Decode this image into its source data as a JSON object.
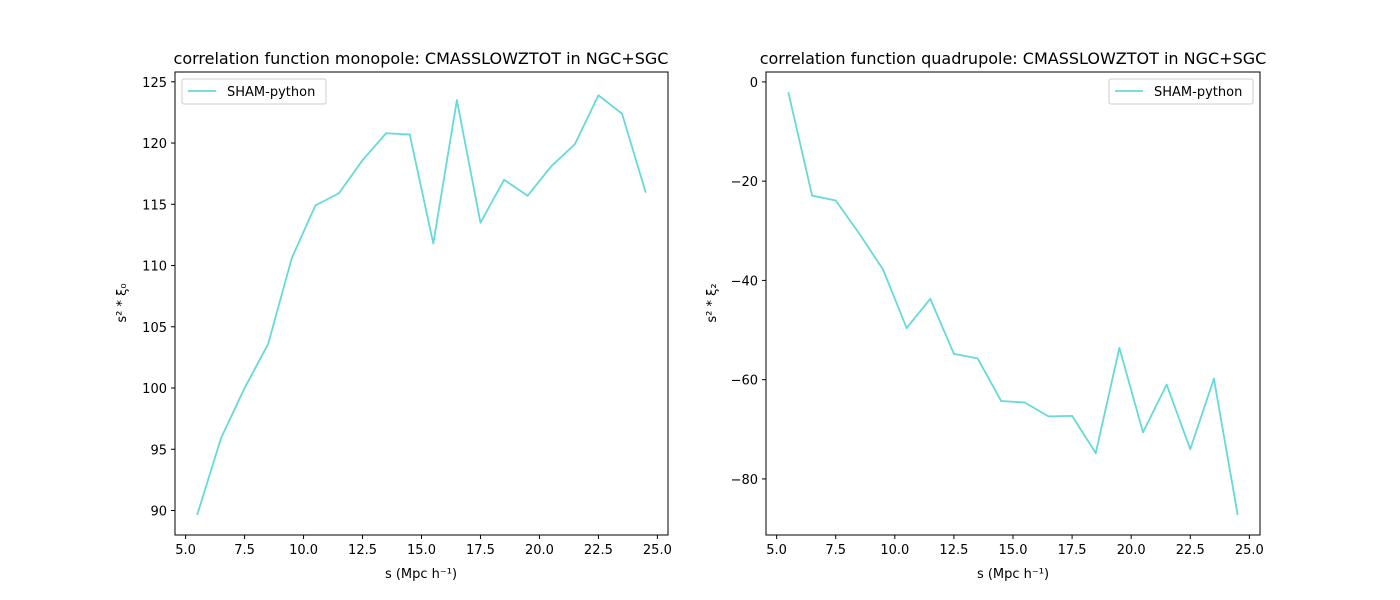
{
  "chart_data": [
    {
      "type": "line",
      "title": "correlation function monopole: CMASSLOWZTOT in NGC+SGC",
      "xlabel": "s (Mpc h⁻¹)",
      "ylabel": "s² * ξ₀",
      "xlim": [
        4.55,
        25.45
      ],
      "ylim": [
        88.0,
        125.8
      ],
      "xticks": [
        5.0,
        7.5,
        10.0,
        12.5,
        15.0,
        17.5,
        20.0,
        22.5,
        25.0
      ],
      "xtick_labels": [
        "5.0",
        "7.5",
        "10.0",
        "12.5",
        "15.0",
        "17.5",
        "20.0",
        "22.5",
        "25.0"
      ],
      "yticks": [
        90,
        95,
        100,
        105,
        110,
        115,
        120,
        125
      ],
      "ytick_labels": [
        "90",
        "95",
        "100",
        "105",
        "110",
        "115",
        "120",
        "125"
      ],
      "legend_position": "upper-left",
      "grid": false,
      "series": [
        {
          "name": "SHAM-python",
          "color": "#66d9d9",
          "x": [
            5.5,
            6.5,
            7.5,
            8.5,
            9.5,
            10.5,
            11.5,
            12.5,
            13.5,
            14.5,
            15.5,
            16.5,
            17.5,
            18.5,
            19.5,
            20.5,
            21.5,
            22.5,
            23.5,
            24.5
          ],
          "y": [
            89.7,
            95.9,
            100.0,
            103.6,
            110.6,
            114.9,
            115.9,
            118.6,
            120.8,
            120.7,
            111.8,
            123.5,
            113.5,
            117.0,
            115.7,
            118.1,
            119.9,
            123.9,
            122.4,
            116.0
          ]
        }
      ]
    },
    {
      "type": "line",
      "title": "correlation function quadrupole: CMASSLOWZTOT in NGC+SGC",
      "xlabel": "s (Mpc h⁻¹)",
      "ylabel": "s² * ξ₂",
      "xlim": [
        4.55,
        25.45
      ],
      "ylim": [
        -91.3,
        2.0
      ],
      "xticks": [
        5.0,
        7.5,
        10.0,
        12.5,
        15.0,
        17.5,
        20.0,
        22.5,
        25.0
      ],
      "xtick_labels": [
        "5.0",
        "7.5",
        "10.0",
        "12.5",
        "15.0",
        "17.5",
        "20.0",
        "22.5",
        "25.0"
      ],
      "yticks": [
        0,
        -20,
        -40,
        -60,
        -80
      ],
      "ytick_labels": [
        "0",
        "−20",
        "−40",
        "−60",
        "−80"
      ],
      "legend_position": "upper-right",
      "grid": false,
      "series": [
        {
          "name": "SHAM-python",
          "color": "#66d9d9",
          "x": [
            5.5,
            6.5,
            7.5,
            8.5,
            9.5,
            10.5,
            11.5,
            12.5,
            13.5,
            14.5,
            15.5,
            16.5,
            17.5,
            18.5,
            19.5,
            20.5,
            21.5,
            22.5,
            23.5,
            24.5
          ],
          "y": [
            -2.2,
            -22.9,
            -23.9,
            -30.6,
            -37.8,
            -49.6,
            -43.7,
            -54.8,
            -55.7,
            -64.3,
            -64.6,
            -67.4,
            -67.3,
            -74.8,
            -53.6,
            -70.6,
            -61.0,
            -74.0,
            -59.8,
            -87.1
          ]
        }
      ]
    }
  ]
}
